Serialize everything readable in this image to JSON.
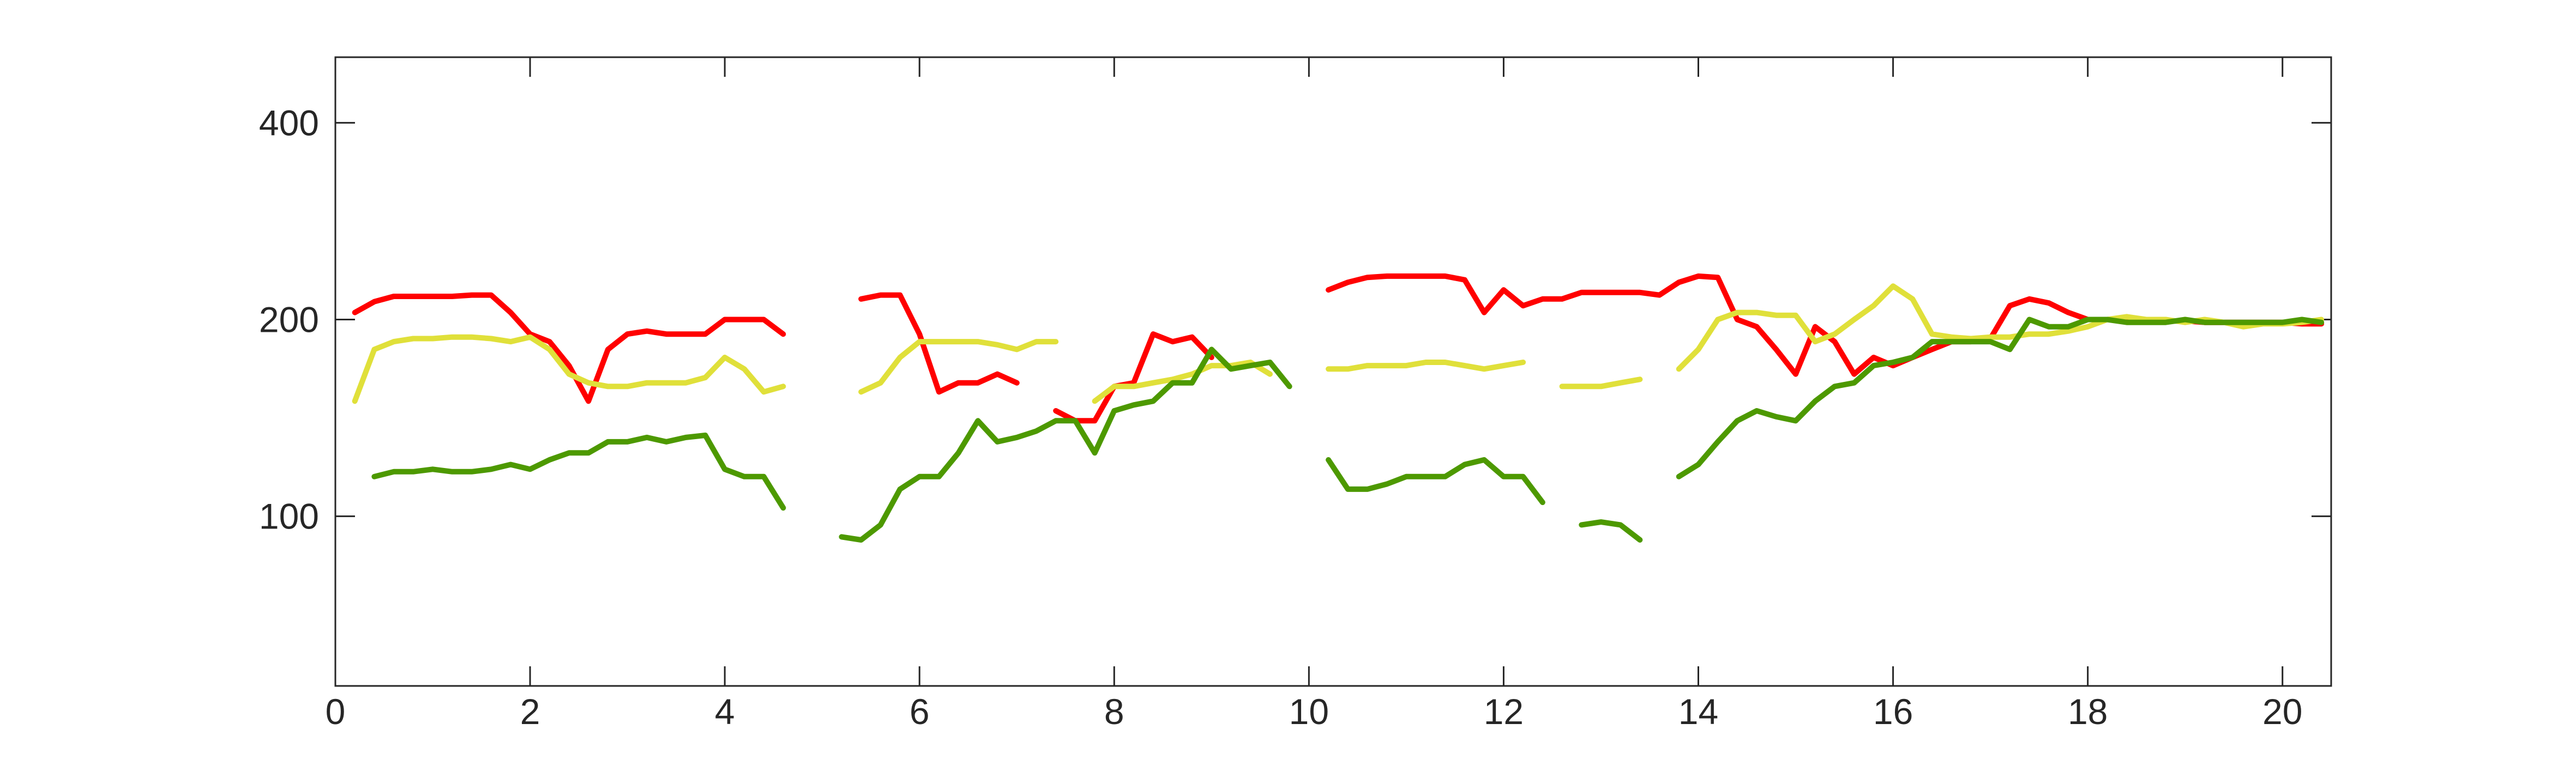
{
  "chart_data": {
    "type": "line",
    "x": [
      0,
      0.2,
      0.4,
      0.6,
      0.8,
      1,
      1.2,
      1.4,
      1.6,
      1.8,
      2,
      2.2,
      2.4,
      2.6,
      2.8,
      3,
      3.2,
      3.4,
      3.6,
      3.8,
      4,
      4.2,
      4.4,
      4.6,
      4.8,
      5,
      5.2,
      5.4,
      5.6,
      5.8,
      6,
      6.2,
      6.4,
      6.6,
      6.8,
      7,
      7.2,
      7.4,
      7.6,
      7.8,
      8,
      8.2,
      8.4,
      8.6,
      8.8,
      9,
      9.2,
      9.4,
      9.6,
      9.8,
      10,
      10.2,
      10.4,
      10.6,
      10.8,
      11,
      11.2,
      11.4,
      11.6,
      11.8,
      12,
      12.2,
      12.4,
      12.6,
      12.8,
      13,
      13.2,
      13.4,
      13.6,
      13.8,
      14,
      14.2,
      14.4,
      14.6,
      14.8,
      15,
      15.2,
      15.4,
      15.6,
      15.8,
      16,
      16.2,
      16.4,
      16.6,
      16.8,
      17,
      17.2,
      17.4,
      17.6,
      17.8,
      18,
      18.2,
      18.4,
      18.6,
      18.8,
      19,
      19.2,
      19.4,
      19.6,
      19.8,
      20,
      20.2,
      20.4
    ],
    "series": [
      {
        "color": "#ff0000",
        "values": [
          null,
          205,
          213,
          217,
          217,
          217,
          217,
          218,
          218,
          205,
          190,
          185,
          170,
          150,
          180,
          190,
          192,
          190,
          190,
          190,
          200,
          200,
          200,
          190,
          null,
          null,
          null,
          215,
          218,
          218,
          190,
          155,
          160,
          160,
          165,
          160,
          null,
          145,
          140,
          140,
          158,
          160,
          190,
          185,
          188,
          175,
          null,
          null,
          null,
          null,
          null,
          222,
          228,
          232,
          233,
          233,
          233,
          233,
          230,
          205,
          222,
          210,
          215,
          215,
          220,
          220,
          220,
          220,
          218,
          228,
          233,
          232,
          200,
          195,
          180,
          165,
          195,
          185,
          165,
          175,
          170,
          175,
          180,
          185,
          185,
          187,
          210,
          215,
          212,
          205,
          200,
          200,
          200,
          200,
          199,
          199,
          198,
          198,
          198,
          198,
          198,
          197,
          197
        ]
      },
      {
        "color": "#e0e03a",
        "values": [
          null,
          150,
          180,
          185,
          187,
          187,
          188,
          188,
          187,
          185,
          188,
          180,
          165,
          160,
          158,
          158,
          160,
          160,
          160,
          163,
          175,
          168,
          155,
          158,
          null,
          null,
          null,
          155,
          160,
          175,
          185,
          185,
          185,
          185,
          183,
          180,
          185,
          185,
          null,
          150,
          158,
          158,
          160,
          162,
          165,
          170,
          170,
          172,
          165,
          null,
          null,
          168,
          168,
          170,
          170,
          170,
          172,
          172,
          170,
          168,
          170,
          172,
          null,
          158,
          158,
          158,
          160,
          162,
          null,
          168,
          180,
          200,
          205,
          205,
          203,
          203,
          185,
          190,
          200,
          210,
          225,
          215,
          190,
          188,
          187,
          188,
          188,
          190,
          190,
          192,
          195,
          200,
          202,
          200,
          200,
          198,
          200,
          198,
          195,
          197,
          197,
          198,
          200
        ]
      },
      {
        "color": "#4d9900",
        "values": [
          null,
          null,
          115,
          117,
          117,
          118,
          117,
          117,
          118,
          120,
          118,
          122,
          125,
          125,
          130,
          130,
          132,
          130,
          132,
          133,
          118,
          115,
          115,
          103,
          null,
          null,
          93,
          92,
          97,
          110,
          115,
          115,
          125,
          140,
          130,
          132,
          135,
          140,
          140,
          125,
          145,
          148,
          150,
          160,
          160,
          180,
          168,
          170,
          172,
          158,
          null,
          122,
          110,
          110,
          112,
          115,
          115,
          115,
          120,
          122,
          115,
          115,
          105,
          null,
          97,
          98,
          97,
          92,
          null,
          115,
          120,
          130,
          140,
          145,
          142,
          140,
          150,
          158,
          160,
          170,
          172,
          175,
          185,
          185,
          185,
          185,
          180,
          200,
          195,
          195,
          200,
          200,
          198,
          198,
          198,
          200,
          198,
          198,
          198,
          198,
          198,
          200,
          198
        ]
      }
    ],
    "xlim": [
      0,
      20.5
    ],
    "ylim": [
      55,
      504
    ],
    "yscale": "log",
    "xticks": [
      0,
      2,
      4,
      6,
      8,
      10,
      12,
      14,
      16,
      18,
      20
    ],
    "yticks": [
      100,
      200,
      400
    ]
  }
}
